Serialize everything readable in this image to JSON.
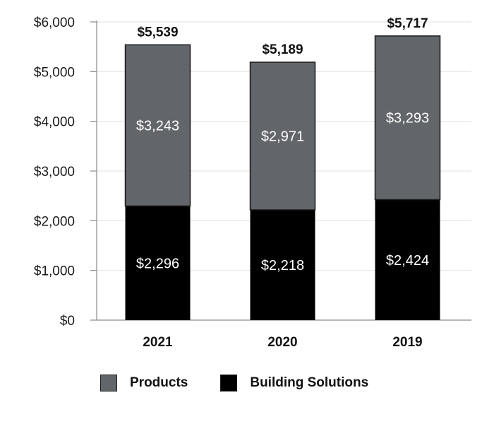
{
  "chart_data": {
    "type": "bar",
    "stacked": true,
    "categories": [
      "2021",
      "2020",
      "2019"
    ],
    "series": [
      {
        "name": "Building Solutions",
        "values": [
          2296,
          2218,
          2424
        ],
        "labels": [
          "$2,296",
          "$2,218",
          "$2,424"
        ],
        "color": "#000000"
      },
      {
        "name": "Products",
        "values": [
          3243,
          2971,
          3293
        ],
        "labels": [
          "$3,243",
          "$2,971",
          "$3,293"
        ],
        "color": "#626569"
      }
    ],
    "totals": [
      5539,
      5189,
      5717
    ],
    "total_labels": [
      "$5,539",
      "$5,189",
      "$5,717"
    ],
    "ylim": [
      0,
      6000
    ],
    "yticks": [
      0,
      1000,
      2000,
      3000,
      4000,
      5000,
      6000
    ],
    "ytick_labels": [
      "$0",
      "$1,000",
      "$2,000",
      "$3,000",
      "$4,000",
      "$5,000",
      "$6,000"
    ],
    "grid": true,
    "legend_position": "bottom"
  },
  "legend": {
    "items": [
      {
        "label": "Products",
        "color": "#626569"
      },
      {
        "label": "Building Solutions",
        "color": "#000000"
      }
    ]
  }
}
